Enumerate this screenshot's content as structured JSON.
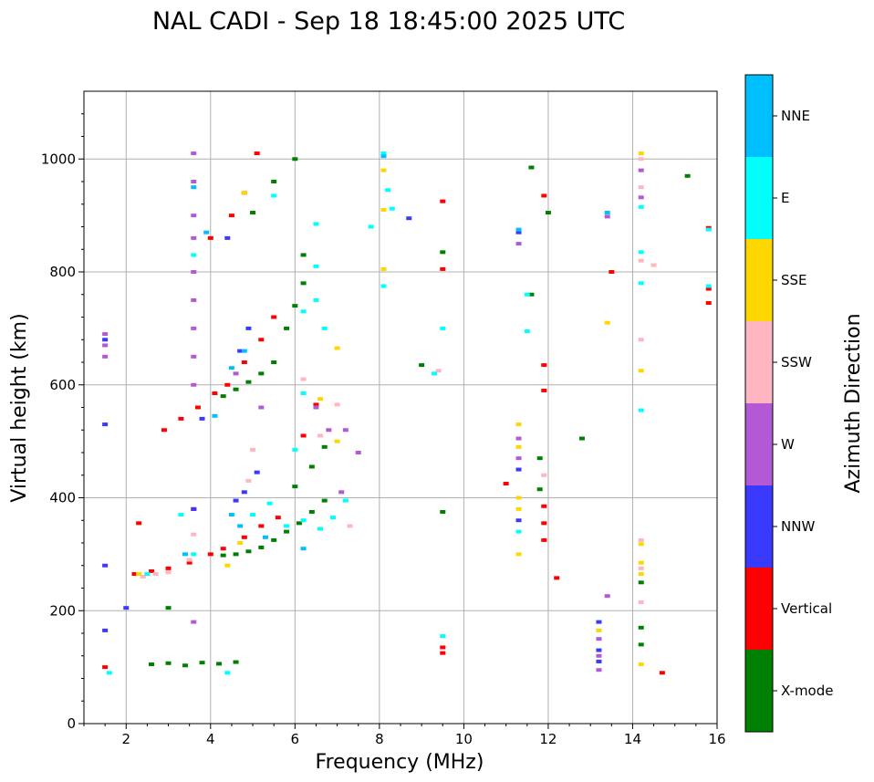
{
  "chart_data": {
    "type": "scatter",
    "title": "NAL CADI - Sep 18 18:45:00 2025 UTC",
    "xlabel": "Frequency (MHz)",
    "ylabel": "Virtual height (km)",
    "xlim": [
      1,
      16
    ],
    "ylim": [
      0,
      1120
    ],
    "xticks": [
      "2",
      "4",
      "6",
      "8",
      "10",
      "12",
      "14",
      "16"
    ],
    "yticks": [
      "0",
      "200",
      "400",
      "600",
      "800",
      "1000"
    ],
    "grid": true,
    "colorbar": {
      "label": "Azimuth Direction",
      "entries": [
        {
          "name": "X-mode",
          "color": "#008000"
        },
        {
          "name": "Vertical",
          "color": "#ff0000"
        },
        {
          "name": "NNW",
          "color": "#3a3aff"
        },
        {
          "name": "W",
          "color": "#b359d6"
        },
        {
          "name": "SSW",
          "color": "#ffb6c1"
        },
        {
          "name": "SSE",
          "color": "#ffd700"
        },
        {
          "name": "E",
          "color": "#00ffff"
        },
        {
          "name": "NNE",
          "color": "#00bfff"
        }
      ]
    },
    "series": [
      {
        "name": "X-mode",
        "points": [
          [
            2.6,
            105
          ],
          [
            3.0,
            107
          ],
          [
            3.4,
            103
          ],
          [
            3.8,
            108
          ],
          [
            4.2,
            106
          ],
          [
            4.6,
            109
          ],
          [
            3.0,
            205
          ],
          [
            4.3,
            298
          ],
          [
            4.6,
            300
          ],
          [
            4.9,
            305
          ],
          [
            5.2,
            312
          ],
          [
            5.5,
            325
          ],
          [
            5.8,
            340
          ],
          [
            6.1,
            355
          ],
          [
            6.4,
            375
          ],
          [
            6.7,
            395
          ],
          [
            6.0,
            420
          ],
          [
            6.4,
            455
          ],
          [
            6.7,
            490
          ],
          [
            4.3,
            580
          ],
          [
            4.6,
            592
          ],
          [
            4.9,
            605
          ],
          [
            5.2,
            620
          ],
          [
            5.5,
            640
          ],
          [
            5.8,
            700
          ],
          [
            6.0,
            740
          ],
          [
            6.2,
            780
          ],
          [
            6.2,
            830
          ],
          [
            5.0,
            905
          ],
          [
            5.5,
            960
          ],
          [
            6.0,
            1000
          ],
          [
            9.5,
            375
          ],
          [
            9.5,
            835
          ],
          [
            11.8,
            470
          ],
          [
            11.8,
            415
          ],
          [
            11.6,
            760
          ],
          [
            11.6,
            985
          ],
          [
            12.0,
            905
          ],
          [
            12.8,
            505
          ],
          [
            14.2,
            250
          ],
          [
            14.2,
            170
          ],
          [
            14.2,
            140
          ],
          [
            15.3,
            970
          ],
          [
            9.0,
            635
          ]
        ]
      },
      {
        "name": "Vertical",
        "points": [
          [
            1.5,
            100
          ],
          [
            2.2,
            265
          ],
          [
            2.6,
            270
          ],
          [
            3.0,
            275
          ],
          [
            3.5,
            285
          ],
          [
            4.0,
            300
          ],
          [
            4.3,
            310
          ],
          [
            4.8,
            330
          ],
          [
            5.2,
            350
          ],
          [
            5.6,
            365
          ],
          [
            2.9,
            520
          ],
          [
            3.3,
            540
          ],
          [
            3.7,
            560
          ],
          [
            4.1,
            585
          ],
          [
            4.4,
            600
          ],
          [
            4.8,
            640
          ],
          [
            5.2,
            680
          ],
          [
            5.5,
            720
          ],
          [
            4.0,
            860
          ],
          [
            4.5,
            900
          ],
          [
            4.8,
            940
          ],
          [
            5.1,
            1010
          ],
          [
            6.2,
            510
          ],
          [
            6.5,
            565
          ],
          [
            9.5,
            125
          ],
          [
            9.5,
            135
          ],
          [
            9.5,
            805
          ],
          [
            9.5,
            925
          ],
          [
            11.0,
            425
          ],
          [
            11.9,
            325
          ],
          [
            11.9,
            355
          ],
          [
            11.9,
            385
          ],
          [
            11.9,
            590
          ],
          [
            11.9,
            635
          ],
          [
            11.9,
            935
          ],
          [
            12.2,
            258
          ],
          [
            13.5,
            800
          ],
          [
            14.7,
            90
          ],
          [
            15.8,
            745
          ],
          [
            15.8,
            770
          ],
          [
            15.8,
            878
          ],
          [
            3.6,
            380
          ],
          [
            2.3,
            355
          ]
        ]
      },
      {
        "name": "NNW",
        "points": [
          [
            1.5,
            165
          ],
          [
            1.5,
            280
          ],
          [
            1.5,
            530
          ],
          [
            1.5,
            680
          ],
          [
            2.0,
            205
          ],
          [
            3.6,
            380
          ],
          [
            3.8,
            540
          ],
          [
            4.6,
            395
          ],
          [
            4.8,
            410
          ],
          [
            5.1,
            445
          ],
          [
            4.7,
            660
          ],
          [
            4.9,
            700
          ],
          [
            4.4,
            860
          ],
          [
            11.3,
            870
          ],
          [
            11.3,
            360
          ],
          [
            11.3,
            450
          ],
          [
            13.2,
            180
          ],
          [
            13.2,
            130
          ],
          [
            13.2,
            110
          ],
          [
            8.7,
            895
          ]
        ]
      },
      {
        "name": "W",
        "points": [
          [
            1.5,
            650
          ],
          [
            1.5,
            670
          ],
          [
            1.5,
            690
          ],
          [
            3.6,
            600
          ],
          [
            3.6,
            650
          ],
          [
            3.6,
            700
          ],
          [
            3.6,
            750
          ],
          [
            3.6,
            800
          ],
          [
            3.6,
            860
          ],
          [
            3.6,
            900
          ],
          [
            3.6,
            960
          ],
          [
            3.6,
            1010
          ],
          [
            3.6,
            180
          ],
          [
            4.6,
            620
          ],
          [
            5.2,
            560
          ],
          [
            6.5,
            560
          ],
          [
            6.8,
            520
          ],
          [
            7.2,
            520
          ],
          [
            7.5,
            480
          ],
          [
            7.1,
            410
          ],
          [
            11.3,
            470
          ],
          [
            11.3,
            505
          ],
          [
            13.2,
            150
          ],
          [
            13.2,
            120
          ],
          [
            13.2,
            95
          ],
          [
            13.4,
            898
          ],
          [
            13.4,
            226
          ],
          [
            14.2,
            980
          ],
          [
            14.2,
            932
          ],
          [
            11.3,
            850
          ]
        ]
      },
      {
        "name": "SSW",
        "points": [
          [
            2.4,
            260
          ],
          [
            2.7,
            265
          ],
          [
            3.0,
            268
          ],
          [
            3.5,
            290
          ],
          [
            3.6,
            335
          ],
          [
            4.9,
            430
          ],
          [
            5.0,
            485
          ],
          [
            6.2,
            610
          ],
          [
            6.6,
            510
          ],
          [
            7.0,
            565
          ],
          [
            7.3,
            350
          ],
          [
            9.4,
            625
          ],
          [
            11.9,
            440
          ],
          [
            14.2,
            1000
          ],
          [
            14.2,
            950
          ],
          [
            14.2,
            820
          ],
          [
            14.2,
            680
          ],
          [
            14.2,
            325
          ],
          [
            14.2,
            275
          ],
          [
            14.2,
            215
          ],
          [
            14.5,
            812
          ]
        ]
      },
      {
        "name": "SSE",
        "points": [
          [
            2.3,
            265
          ],
          [
            4.4,
            280
          ],
          [
            4.7,
            320
          ],
          [
            4.8,
            940
          ],
          [
            6.6,
            575
          ],
          [
            7.0,
            500
          ],
          [
            7.0,
            665
          ],
          [
            8.1,
            980
          ],
          [
            8.1,
            910
          ],
          [
            8.1,
            805
          ],
          [
            11.3,
            530
          ],
          [
            11.3,
            490
          ],
          [
            11.3,
            400
          ],
          [
            11.3,
            380
          ],
          [
            11.3,
            300
          ],
          [
            13.2,
            165
          ],
          [
            13.4,
            710
          ],
          [
            14.2,
            1010
          ],
          [
            14.2,
            625
          ],
          [
            14.2,
            318
          ],
          [
            14.2,
            285
          ],
          [
            14.2,
            265
          ],
          [
            14.2,
            105
          ]
        ]
      },
      {
        "name": "E",
        "points": [
          [
            1.6,
            90
          ],
          [
            2.5,
            265
          ],
          [
            3.3,
            370
          ],
          [
            3.6,
            300
          ],
          [
            3.6,
            830
          ],
          [
            4.4,
            90
          ],
          [
            5.0,
            370
          ],
          [
            5.4,
            390
          ],
          [
            5.8,
            350
          ],
          [
            6.2,
            360
          ],
          [
            6.6,
            345
          ],
          [
            6.9,
            365
          ],
          [
            7.2,
            395
          ],
          [
            6.2,
            585
          ],
          [
            6.5,
            750
          ],
          [
            6.7,
            700
          ],
          [
            6.2,
            730
          ],
          [
            5.5,
            935
          ],
          [
            6.5,
            885
          ],
          [
            6.5,
            810
          ],
          [
            7.8,
            880
          ],
          [
            8.1,
            1010
          ],
          [
            8.2,
            945
          ],
          [
            8.1,
            775
          ],
          [
            8.3,
            912
          ],
          [
            9.3,
            620
          ],
          [
            9.5,
            155
          ],
          [
            9.5,
            700
          ],
          [
            11.3,
            340
          ],
          [
            11.5,
            760
          ],
          [
            11.5,
            695
          ],
          [
            14.2,
            780
          ],
          [
            14.2,
            835
          ],
          [
            14.2,
            915
          ],
          [
            14.2,
            555
          ],
          [
            15.8,
            875
          ],
          [
            15.8,
            775
          ],
          [
            6.0,
            485
          ]
        ]
      },
      {
        "name": "NNE",
        "points": [
          [
            3.6,
            950
          ],
          [
            3.9,
            870
          ],
          [
            4.5,
            630
          ],
          [
            4.8,
            660
          ],
          [
            4.5,
            370
          ],
          [
            4.7,
            350
          ],
          [
            5.3,
            330
          ],
          [
            4.1,
            545
          ],
          [
            3.4,
            300
          ],
          [
            6.2,
            310
          ],
          [
            11.3,
            875
          ],
          [
            13.4,
            905
          ],
          [
            8.1,
            1005
          ]
        ]
      }
    ]
  }
}
